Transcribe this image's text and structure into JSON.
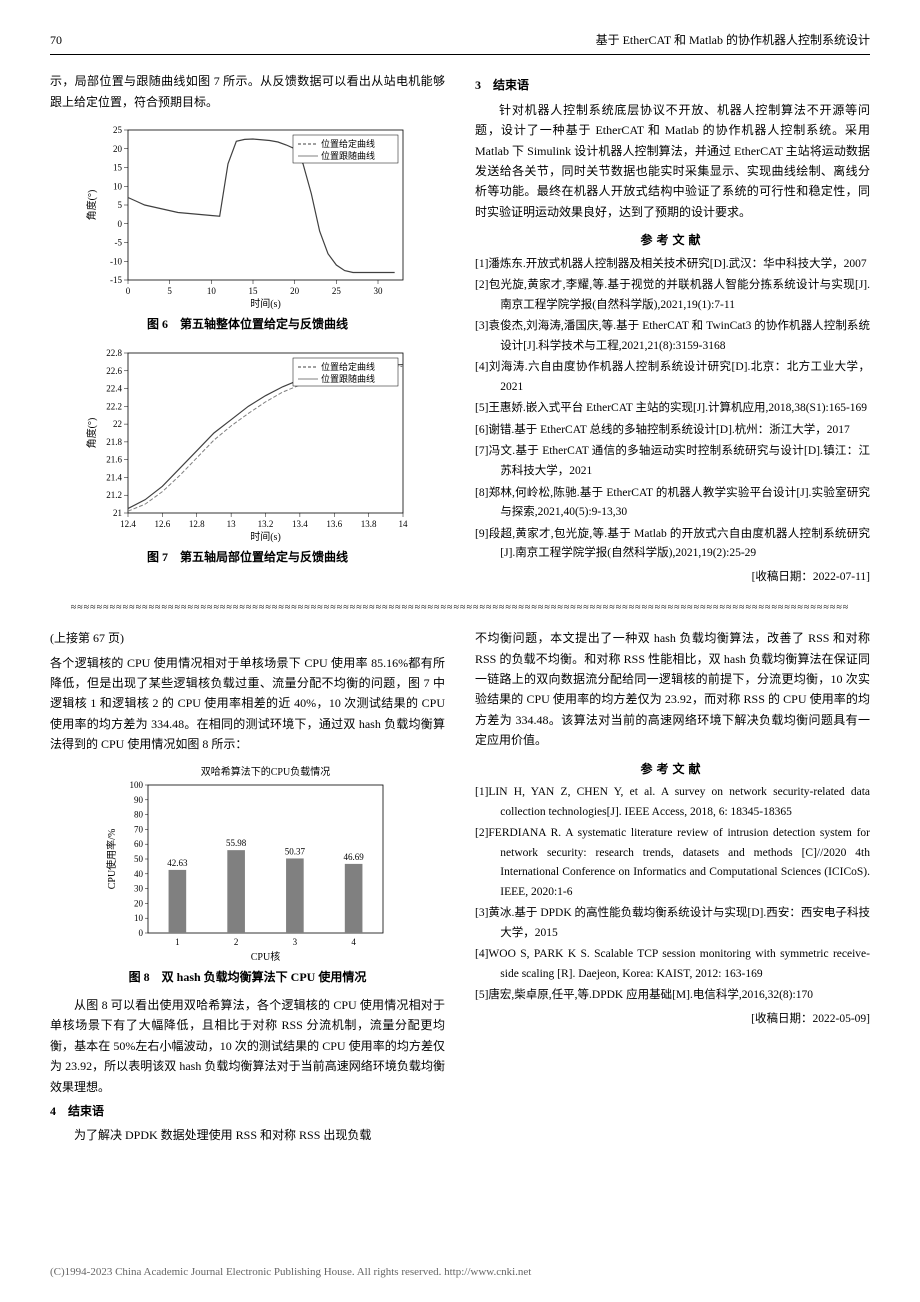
{
  "header": {
    "page_number": "70",
    "running_title": "基于 EtherCAT 和 Matlab 的协作机器人控制系统设计"
  },
  "left_top_para": "示，局部位置与跟随曲线如图 7 所示。从反馈数据可以看出从站电机能够跟上给定位置，符合预期目标。",
  "fig6": {
    "caption": "图 6　第五轴整体位置给定与反馈曲线",
    "xlabel": "时间(s)",
    "ylabel": "角度(°)",
    "legend": [
      "位置给定曲线",
      "位置跟随曲线"
    ],
    "xlim": [
      0,
      33
    ],
    "ylim": [
      -15,
      25
    ],
    "xticks": [
      0,
      5,
      10,
      15,
      20,
      25,
      30
    ],
    "yticks": [
      -15,
      -10,
      -5,
      0,
      5,
      10,
      15,
      20,
      25
    ],
    "line_color": "#404040",
    "line_color2": "#808080",
    "grid_color": "#e8e8e8",
    "bg_color": "#ffffff",
    "data_x": [
      0,
      1,
      2,
      3,
      4,
      5,
      6,
      7,
      8,
      9,
      10,
      11,
      12,
      13,
      14,
      15,
      16,
      17,
      18,
      19,
      20,
      21,
      22,
      23,
      24,
      25,
      26,
      27,
      28,
      29,
      30,
      31,
      32
    ],
    "data_y": [
      7,
      6,
      5,
      4.5,
      4,
      3.5,
      3,
      2.8,
      2.6,
      2.4,
      2.2,
      2,
      16,
      22,
      22.5,
      22.6,
      22.4,
      22.2,
      21.8,
      21,
      20,
      16,
      8,
      -2,
      -8,
      -11,
      -12.5,
      -13,
      -13,
      -13,
      -13,
      -13,
      -13
    ]
  },
  "fig7": {
    "caption": "图 7　第五轴局部位置给定与反馈曲线",
    "xlabel": "时间(s)",
    "ylabel": "角度(°)",
    "legend": [
      "位置给定曲线",
      "位置跟随曲线"
    ],
    "xlim": [
      12.4,
      14
    ],
    "ylim": [
      21,
      22.8
    ],
    "xticks": [
      12.4,
      12.6,
      12.8,
      13,
      13.2,
      13.4,
      13.6,
      13.8,
      14
    ],
    "yticks": [
      21,
      21.2,
      21.4,
      21.6,
      21.8,
      22,
      22.2,
      22.4,
      22.6,
      22.8
    ],
    "line_color": "#404040",
    "line_color2": "#808080",
    "grid_color": "#e8e8e8",
    "bg_color": "#ffffff",
    "data_x": [
      12.4,
      12.5,
      12.6,
      12.7,
      12.8,
      12.9,
      13.0,
      13.1,
      13.2,
      13.3,
      13.4,
      13.5,
      13.6,
      13.7,
      13.8,
      13.9,
      14.0
    ],
    "data_y": [
      21.05,
      21.15,
      21.3,
      21.5,
      21.7,
      21.9,
      22.05,
      22.2,
      22.32,
      22.42,
      22.5,
      22.56,
      22.6,
      22.63,
      22.65,
      22.66,
      22.67
    ],
    "data_y2": [
      21.02,
      21.1,
      21.24,
      21.42,
      21.62,
      21.82,
      21.98,
      22.12,
      22.25,
      22.36,
      22.44,
      22.5,
      22.55,
      22.59,
      22.62,
      22.64,
      22.65
    ]
  },
  "right_top": {
    "sec3_title": "3　结束语",
    "sec3_para": "针对机器人控制系统底层协议不开放、机器人控制算法不开源等问题，设计了一种基于 EtherCAT 和 Matlab 的协作机器人控制系统。采用 Matlab 下 Simulink 设计机器人控制算法，并通过 EtherCAT 主站将运动数据发送给各关节，同时关节数据也能实时采集显示、实现曲线绘制、离线分析等功能。最终在机器人开放式结构中验证了系统的可行性和稳定性，同时实验证明运动效果良好，达到了预期的设计要求。",
    "ref_title": "参考文献",
    "refs": [
      "[1]潘炼东.开放式机器人控制器及相关技术研究[D].武汉：华中科技大学，2007",
      "[2]包光旋,黄家才,李耀,等.基于视觉的并联机器人智能分拣系统设计与实现[J].南京工程学院学报(自然科学版),2021,19(1):7-11",
      "[3]袁俊杰,刘海涛,潘国庆,等.基于 EtherCAT 和 TwinCat3 的协作机器人控制系统设计[J].科学技术与工程,2021,21(8):3159-3168",
      "[4]刘海涛.六自由度协作机器人控制系统设计研究[D].北京：北方工业大学，2021",
      "[5]王惠娇.嵌入式平台 EtherCAT 主站的实现[J].计算机应用,2018,38(S1):165-169",
      "[6]谢错.基于 EtherCAT 总线的多轴控制系统设计[D].杭州：浙江大学，2017",
      "[7]冯文.基于 EtherCAT 通信的多轴运动实时控制系统研究与设计[D].镇江：江苏科技大学，2021",
      "[8]郑林,何岭松,陈驰.基于 EtherCAT 的机器人教学实验平台设计[J].实验室研究与探索,2021,40(5):9-13,30",
      "[9]段超,黄家才,包光旋,等.基于 Matlab 的开放式六自由度机器人控制系统研究[J].南京工程学院学报(自然科学版),2021,19(2):25-29"
    ],
    "date": "[收稿日期：2022-07-11]"
  },
  "divider_char": "≈",
  "continuation_label": "(上接第 67 页)",
  "left_bottom": {
    "para1": "各个逻辑核的 CPU 使用情况相对于单核场景下 CPU 使用率 85.16%都有所降低，但是出现了某些逻辑核负载过重、流量分配不均衡的问题，图 7 中逻辑核 1 和逻辑核 2 的 CPU 使用率相差的近 40%，10 次测试结果的 CPU 使用率的均方差为 334.48。在相同的测试环境下，通过双 hash 负载均衡算法得到的 CPU 使用情况如图 8 所示：",
    "para2": "从图 8 可以看出使用双哈希算法，各个逻辑核的 CPU 使用情况相对于单核场景下有了大幅降低，且相比于对称 RSS 分流机制，流量分配更均衡，基本在 50%左右小幅波动，10 次的测试结果的 CPU 使用率的均方差仅为 23.92，所以表明该双 hash 负载均衡算法对于当前高速网络环境负载均衡效果理想。",
    "sec4_title": "4　结束语",
    "sec4_para": "为了解决 DPDK 数据处理使用 RSS 和对称 RSS 出现负载"
  },
  "fig8": {
    "title": "双哈希算法下的CPU负载情况",
    "caption": "图 8　双 hash 负载均衡算法下 CPU 使用情况",
    "xlabel": "CPU核",
    "ylabel": "CPU使用率/%",
    "categories": [
      "1",
      "2",
      "3",
      "4"
    ],
    "values": [
      42.63,
      55.98,
      50.37,
      46.69
    ],
    "ylim": [
      0,
      100
    ],
    "yticks": [
      0,
      10,
      20,
      30,
      40,
      50,
      60,
      70,
      80,
      90,
      100
    ],
    "bar_color": "#808080",
    "bg_color": "#ffffff",
    "border_color": "#000000",
    "bar_width": 0.3
  },
  "right_bottom": {
    "para1": "不均衡问题，本文提出了一种双 hash 负载均衡算法，改善了 RSS 和对称 RSS 的负载不均衡。和对称 RSS 性能相比，双 hash 负载均衡算法在保证同一链路上的双向数据流分配给同一逻辑核的前提下，分流更均衡，10 次实验结果的 CPU 使用率的均方差仅为 23.92，而对称 RSS 的 CPU 使用率的均方差为 334.48。该算法对当前的高速网络环境下解决负载均衡问题具有一定应用价值。",
    "ref_title": "参考文献",
    "refs": [
      "[1]LIN H, YAN Z, CHEN Y, et al. A survey on network security-related data collection technologies[J]. IEEE Access, 2018, 6: 18345-18365",
      "[2]FERDIANA R. A systematic literature review of intrusion detection system for network security: research trends, datasets and methods [C]//2020 4th International Conference on Informatics and Computational Sciences (ICICoS). IEEE, 2020:1-6",
      "[3]黄冰.基于 DPDK 的高性能负载均衡系统设计与实现[D].西安：西安电子科技大学，2015",
      "[4]WOO S, PARK K S. Scalable TCP session monitoring with symmetric receive-side scaling [R]. Daejeon, Korea: KAIST, 2012: 163-169",
      "[5]唐宏,柴卓原,任平,等.DPDK 应用基础[M].电信科学,2016,32(8):170"
    ],
    "date": "[收稿日期：2022-05-09]"
  },
  "footer": "(C)1994-2023 China Academic Journal Electronic Publishing House. All rights reserved.    http://www.cnki.net"
}
